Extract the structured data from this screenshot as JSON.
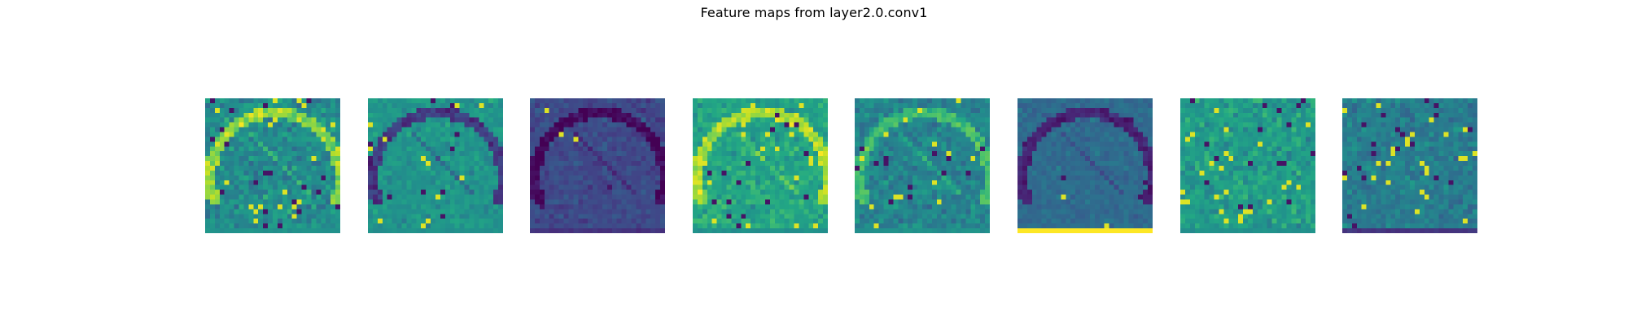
{
  "figure": {
    "title": "Feature maps from layer2.0.conv1"
  },
  "colormap": "viridis",
  "feature_maps": [
    {
      "name": "feature-map-1",
      "style": "speckled-arc",
      "bottom_row": "mid"
    },
    {
      "name": "feature-map-2",
      "style": "soft-green",
      "bottom_row": "mid"
    },
    {
      "name": "feature-map-3",
      "style": "dark-arc",
      "bottom_row": "dark"
    },
    {
      "name": "feature-map-4",
      "style": "bright-arc",
      "bottom_row": "mid"
    },
    {
      "name": "feature-map-5",
      "style": "textured",
      "bottom_row": "mid"
    },
    {
      "name": "feature-map-6",
      "style": "contour",
      "bottom_row": "yellow"
    },
    {
      "name": "feature-map-7",
      "style": "busy-green",
      "bottom_row": "mid"
    },
    {
      "name": "feature-map-8",
      "style": "noisy-teal",
      "bottom_row": "dark"
    }
  ]
}
